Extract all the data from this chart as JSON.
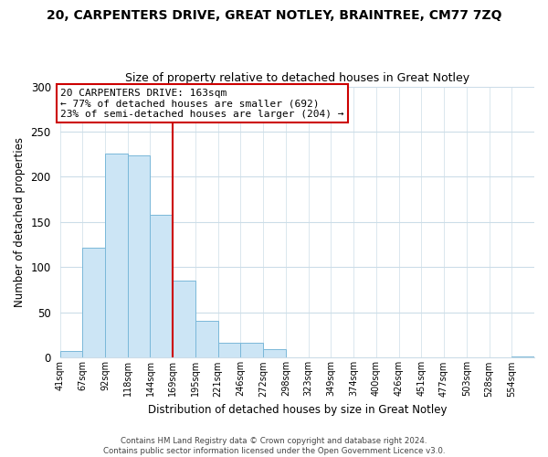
{
  "title": "20, CARPENTERS DRIVE, GREAT NOTLEY, BRAINTREE, CM77 7ZQ",
  "subtitle": "Size of property relative to detached houses in Great Notley",
  "xlabel": "Distribution of detached houses by size in Great Notley",
  "ylabel": "Number of detached properties",
  "bin_labels": [
    "41sqm",
    "67sqm",
    "92sqm",
    "118sqm",
    "144sqm",
    "169sqm",
    "195sqm",
    "221sqm",
    "246sqm",
    "272sqm",
    "298sqm",
    "323sqm",
    "349sqm",
    "374sqm",
    "400sqm",
    "426sqm",
    "451sqm",
    "477sqm",
    "503sqm",
    "528sqm",
    "554sqm"
  ],
  "bar_heights": [
    7,
    122,
    226,
    224,
    158,
    85,
    41,
    17,
    17,
    9,
    0,
    0,
    0,
    0,
    0,
    0,
    0,
    0,
    0,
    0,
    1
  ],
  "bar_color": "#cce5f5",
  "bar_edge_color": "#7ab8d9",
  "vline_x": 5,
  "vline_color": "#cc0000",
  "annotation_title": "20 CARPENTERS DRIVE: 163sqm",
  "annotation_line1": "← 77% of detached houses are smaller (692)",
  "annotation_line2": "23% of semi-detached houses are larger (204) →",
  "annotation_box_color": "#ffffff",
  "annotation_box_edge": "#cc0000",
  "ylim": [
    0,
    300
  ],
  "yticks": [
    0,
    50,
    100,
    150,
    200,
    250,
    300
  ],
  "footer_line1": "Contains HM Land Registry data © Crown copyright and database right 2024.",
  "footer_line2": "Contains public sector information licensed under the Open Government Licence v3.0.",
  "background_color": "#ffffff",
  "grid_color": "#ccdde8"
}
